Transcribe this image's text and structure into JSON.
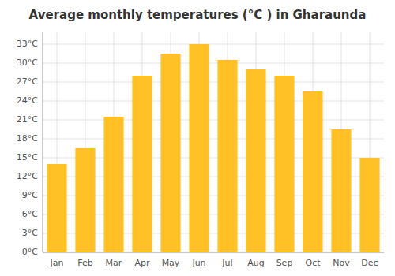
{
  "chart_data": {
    "type": "bar",
    "title": "Average monthly temperatures (°C ) in Gharaunda",
    "categories": [
      "Jan",
      "Feb",
      "Mar",
      "Apr",
      "May",
      "Jun",
      "Jul",
      "Aug",
      "Sep",
      "Oct",
      "Nov",
      "Dec"
    ],
    "values": [
      14,
      16.5,
      21.5,
      28,
      31.5,
      33,
      30.5,
      29,
      28,
      25.5,
      19.5,
      15
    ],
    "color": "#FFC125",
    "ylim": [
      0,
      35
    ],
    "yticks": [
      {
        "value": 0,
        "label": "0°C"
      },
      {
        "value": 3,
        "label": "3°C"
      },
      {
        "value": 6,
        "label": "6°C"
      },
      {
        "value": 9,
        "label": "9°C"
      },
      {
        "value": 12,
        "label": "12°C"
      },
      {
        "value": 15,
        "label": "15°C"
      },
      {
        "value": 18,
        "label": "18°C"
      },
      {
        "value": 21,
        "label": "21°C"
      },
      {
        "value": 24,
        "label": "24°C"
      },
      {
        "value": 27,
        "label": "27°C"
      },
      {
        "value": 30,
        "label": "30°C"
      },
      {
        "value": 33,
        "label": "33°C"
      }
    ],
    "grid": true
  }
}
